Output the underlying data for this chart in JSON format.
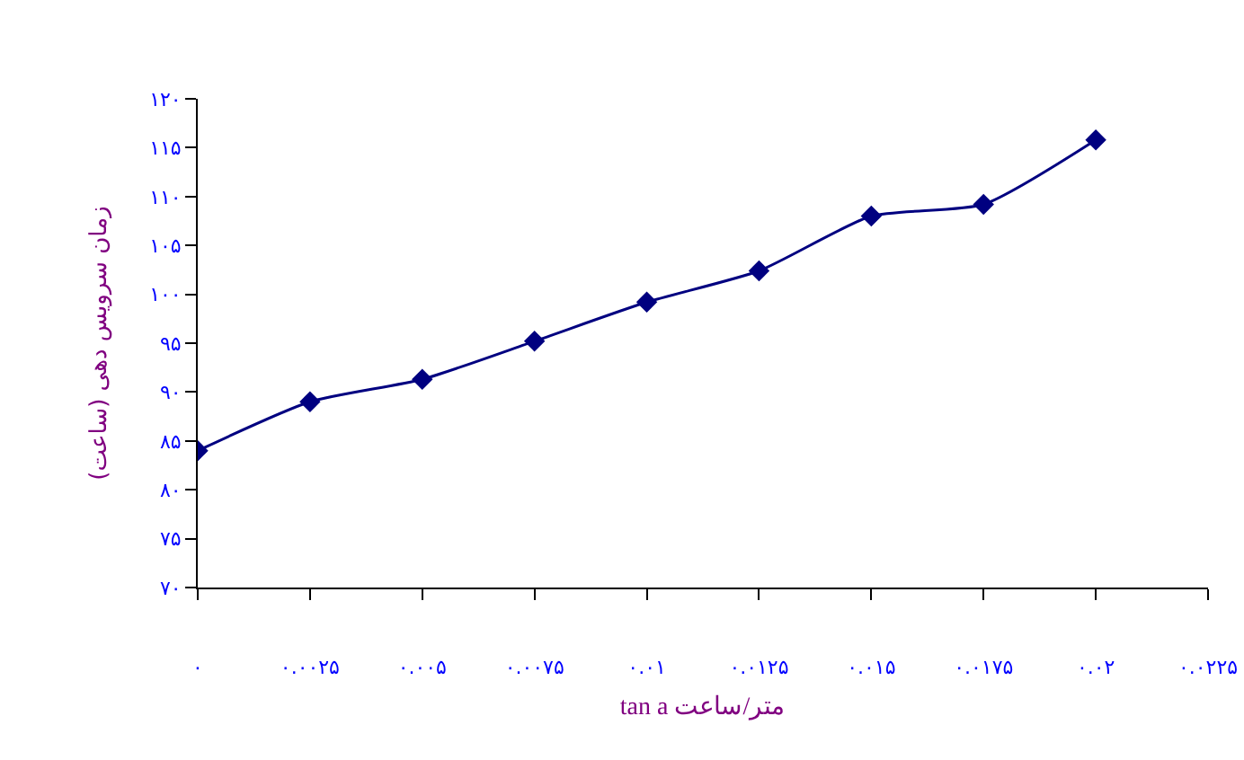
{
  "chart_data": {
    "type": "line",
    "xlabel": "tan a متر/ساعت",
    "ylabel": "زمان سرویس دهی (ساعت)",
    "x": [
      0,
      0.0025,
      0.005,
      0.0075,
      0.01,
      0.0125,
      0.015,
      0.0175,
      0.02
    ],
    "series": [
      {
        "color": "#000080",
        "values": [
          84,
          89,
          91.3,
          95.2,
          99.2,
          102.4,
          108,
          109.2,
          115.8
        ]
      }
    ],
    "xlim": [
      0,
      0.0225
    ],
    "xticks": [
      {
        "value": 0,
        "label": "۰"
      },
      {
        "value": 0.0025,
        "label": "۰.۰۰۲۵"
      },
      {
        "value": 0.005,
        "label": "۰.۰۰۵"
      },
      {
        "value": 0.0075,
        "label": "۰.۰۰۷۵"
      },
      {
        "value": 0.01,
        "label": "۰.۰۱"
      },
      {
        "value": 0.0125,
        "label": "۰.۰۱۲۵"
      },
      {
        "value": 0.015,
        "label": "۰.۰۱۵"
      },
      {
        "value": 0.0175,
        "label": "۰.۰۱۷۵"
      },
      {
        "value": 0.02,
        "label": "۰.۰۲"
      },
      {
        "value": 0.0225,
        "label": "۰.۰۲۲۵"
      }
    ],
    "ylim": [
      70,
      120
    ],
    "yticks": [
      {
        "value": 70,
        "label": "۷۰"
      },
      {
        "value": 75,
        "label": "۷۵"
      },
      {
        "value": 80,
        "label": "۸۰"
      },
      {
        "value": 85,
        "label": "۸۵"
      },
      {
        "value": 90,
        "label": "۹۰"
      },
      {
        "value": 95,
        "label": "۹۵"
      },
      {
        "value": 100,
        "label": "۱۰۰"
      },
      {
        "value": 105,
        "label": "۱۰۵"
      },
      {
        "value": 110,
        "label": "۱۱۰"
      },
      {
        "value": 115,
        "label": "۱۱۵"
      },
      {
        "value": 120,
        "label": "۱۲۰"
      }
    ],
    "grid": false,
    "legend": false,
    "marker": "diamond",
    "line_style": "solid"
  }
}
